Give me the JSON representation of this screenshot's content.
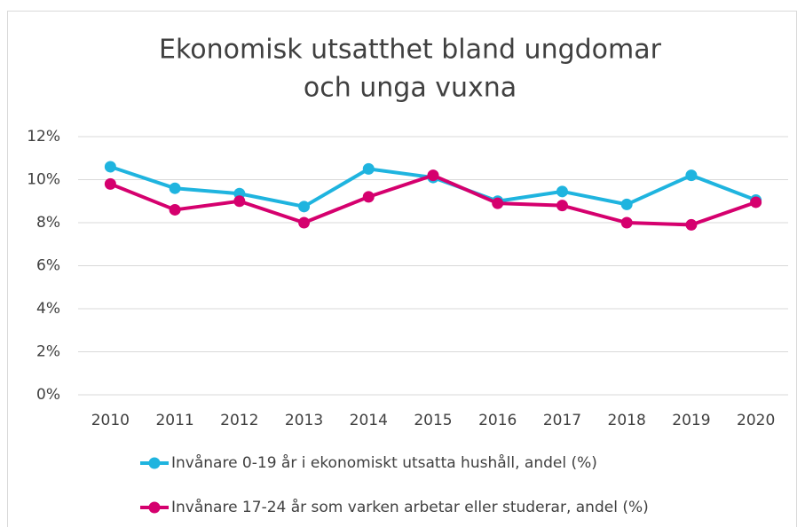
{
  "chart_data": {
    "type": "line",
    "title": [
      "Ekonomisk utsatthet bland ungdomar",
      "och unga vuxna"
    ],
    "categories": [
      "2010",
      "2011",
      "2012",
      "2013",
      "2014",
      "2015",
      "2016",
      "2017",
      "2018",
      "2019",
      "2020"
    ],
    "series": [
      {
        "name": "Invånare 0-19 år i ekonomiskt utsatta hushåll, andel (%)",
        "color": "#1fb4df",
        "values": [
          10.6,
          9.6,
          9.35,
          8.75,
          10.5,
          10.1,
          9.0,
          9.45,
          8.85,
          10.2,
          9.05
        ]
      },
      {
        "name": "Invånare 17-24 år som varken arbetar eller studerar, andel (%)",
        "color": "#d5006e",
        "values": [
          9.8,
          8.6,
          9.0,
          8.0,
          9.2,
          10.2,
          8.9,
          8.8,
          8.0,
          7.9,
          8.95
        ]
      }
    ],
    "ylim": [
      0,
      12
    ],
    "yticks": [
      {
        "value": 0,
        "label": "0%"
      },
      {
        "value": 2,
        "label": "2%"
      },
      {
        "value": 4,
        "label": "4%"
      },
      {
        "value": 6,
        "label": "6%"
      },
      {
        "value": 8,
        "label": "8%"
      },
      {
        "value": 10,
        "label": "10%"
      },
      {
        "value": 12,
        "label": "12%"
      }
    ],
    "grid": true
  }
}
